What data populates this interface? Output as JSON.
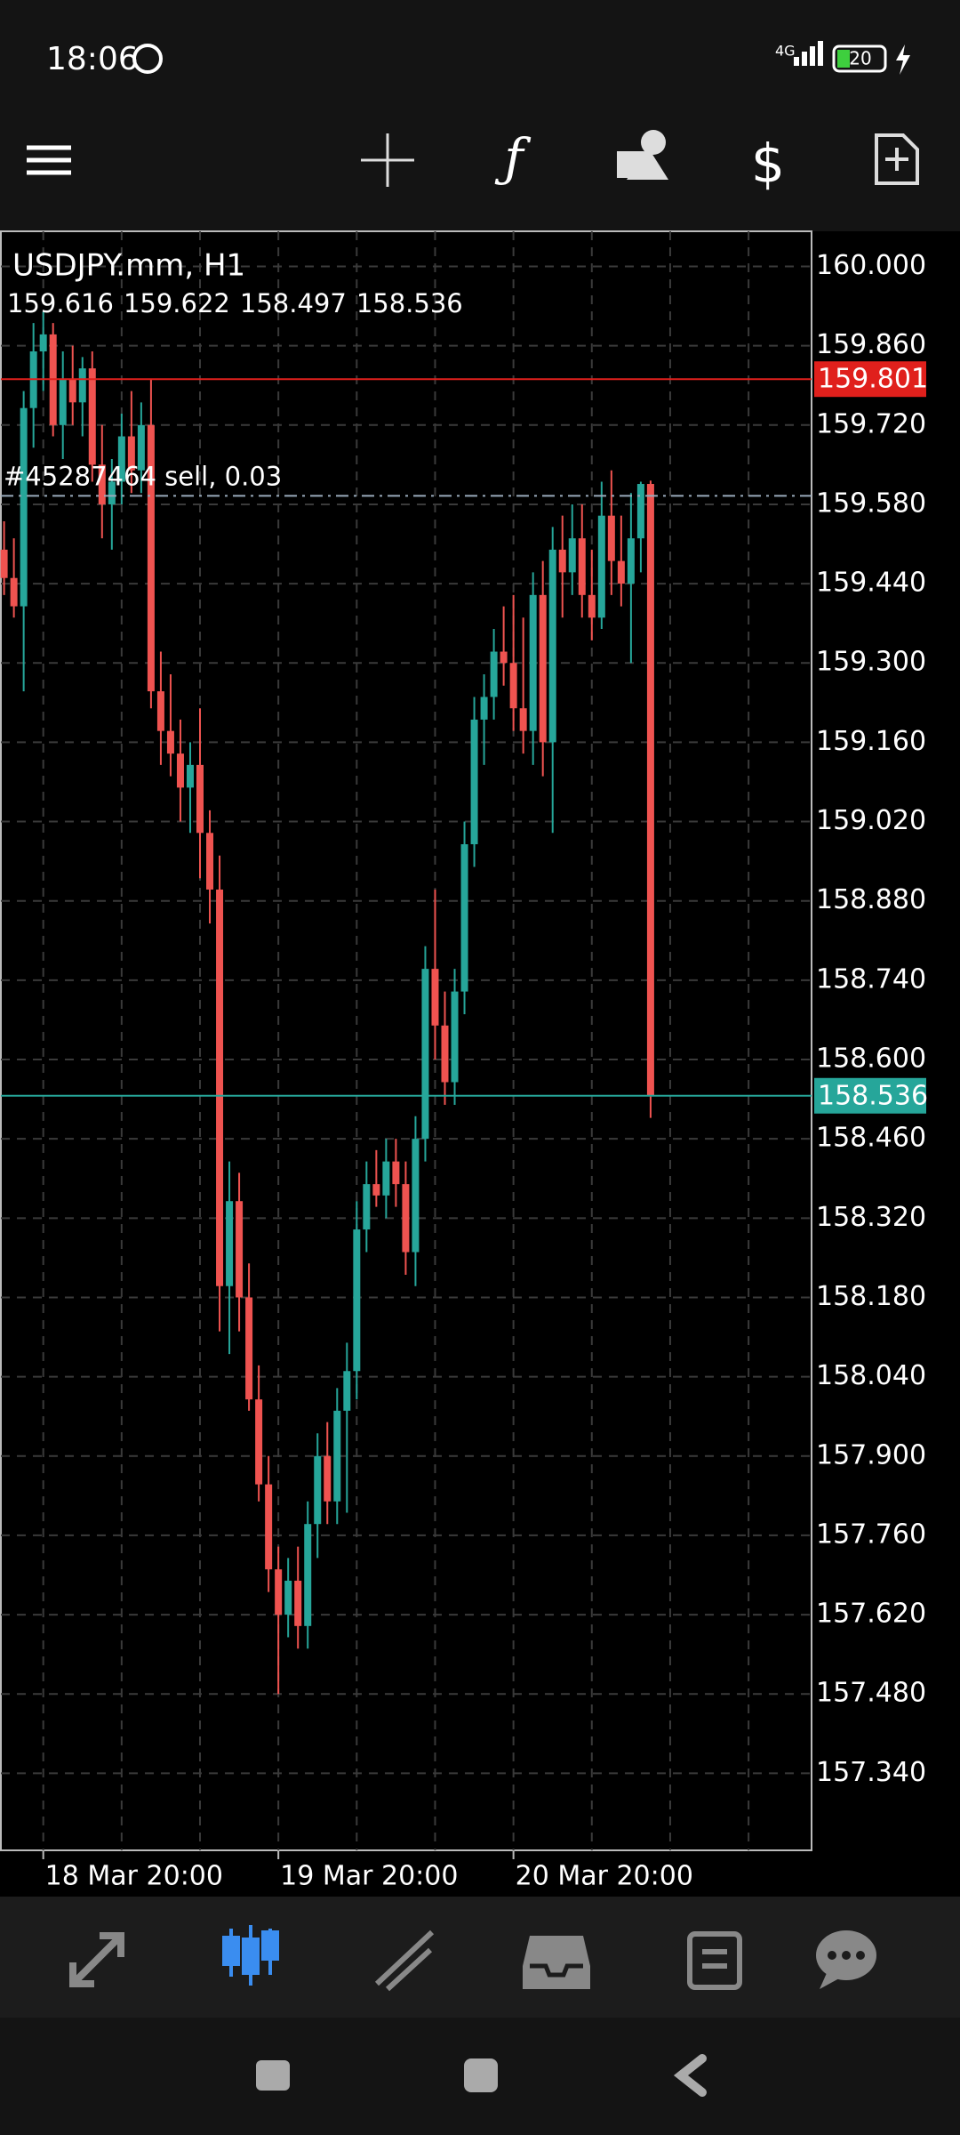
{
  "status": {
    "time": "18:06",
    "network": "4G",
    "battery": "20"
  },
  "chart_data": {
    "type": "candlestick",
    "title": "USDJPY.mm, H1",
    "order_label": "#45287464 sell, 0.03",
    "order_price": 159.595,
    "ask": 159.801,
    "up_color": "#26a69a",
    "down_color": "#ef5350",
    "ask_color": "#e0201c",
    "grid": true,
    "categories": [
      null,
      null,
      null,
      null,
      "18 Mar 20:00",
      null,
      null,
      null,
      null,
      null,
      null,
      null,
      null,
      null,
      null,
      null,
      null,
      null,
      null,
      null,
      null,
      null,
      null,
      null,
      null,
      null,
      null,
      null,
      "19 Mar 20:00",
      null,
      null,
      null,
      null,
      null,
      null,
      null,
      null,
      null,
      null,
      null,
      null,
      null,
      null,
      null,
      null,
      null,
      null,
      null,
      null,
      null,
      null,
      null,
      "20 Mar 20:00",
      null,
      null,
      null,
      null,
      null,
      null,
      null,
      null,
      null,
      null,
      null,
      null,
      null,
      null
    ],
    "open": [
      159.5,
      159.45,
      159.4,
      159.75,
      159.85,
      159.88,
      159.72,
      159.8,
      159.76,
      159.82,
      159.65,
      159.58,
      159.62,
      159.7,
      159.64,
      159.72,
      159.25,
      159.18,
      159.14,
      159.08,
      159.12,
      159.0,
      158.9,
      158.2,
      158.35,
      158.18,
      158.0,
      157.85,
      157.7,
      157.62,
      157.68,
      157.6,
      157.78,
      157.9,
      157.82,
      157.98,
      158.05,
      158.3,
      158.38,
      158.36,
      158.42,
      158.38,
      158.26,
      158.46,
      158.76,
      158.66,
      158.56,
      158.72,
      158.98,
      159.2,
      159.24,
      159.32,
      159.3,
      159.22,
      159.18,
      159.42,
      159.16,
      159.5,
      159.46,
      159.52,
      159.42,
      159.38,
      159.56,
      159.48,
      159.44,
      159.52,
      159.616
    ],
    "high": [
      159.55,
      159.52,
      159.78,
      159.9,
      159.92,
      159.9,
      159.85,
      159.86,
      159.84,
      159.85,
      159.72,
      159.66,
      159.74,
      159.78,
      159.76,
      159.8,
      159.32,
      159.28,
      159.2,
      159.16,
      159.22,
      159.04,
      158.96,
      158.42,
      158.4,
      158.24,
      158.06,
      157.9,
      157.74,
      157.72,
      157.74,
      157.82,
      157.94,
      157.96,
      158.02,
      158.1,
      158.35,
      158.42,
      158.44,
      158.46,
      158.46,
      158.42,
      158.5,
      158.8,
      158.9,
      158.72,
      158.76,
      159.02,
      159.24,
      159.28,
      159.36,
      159.4,
      159.42,
      159.38,
      159.46,
      159.48,
      159.54,
      159.56,
      159.58,
      159.58,
      159.5,
      159.62,
      159.64,
      159.56,
      159.6,
      159.62,
      159.622
    ],
    "low": [
      159.42,
      159.38,
      159.25,
      159.68,
      159.78,
      159.7,
      159.66,
      159.72,
      159.7,
      159.62,
      159.52,
      159.5,
      159.58,
      159.6,
      159.6,
      159.22,
      159.12,
      159.1,
      159.02,
      159.0,
      158.92,
      158.84,
      158.12,
      158.08,
      158.12,
      157.98,
      157.82,
      157.66,
      157.48,
      157.58,
      157.56,
      157.56,
      157.72,
      157.78,
      157.78,
      157.8,
      158.0,
      158.26,
      158.34,
      158.32,
      158.34,
      158.22,
      158.2,
      158.42,
      158.6,
      158.52,
      158.52,
      158.68,
      158.94,
      159.12,
      159.2,
      159.26,
      159.18,
      159.14,
      159.12,
      159.1,
      159.0,
      159.38,
      159.42,
      159.38,
      159.34,
      159.36,
      159.42,
      159.4,
      159.3,
      159.46,
      158.497
    ],
    "close": [
      159.45,
      159.4,
      159.75,
      159.85,
      159.88,
      159.72,
      159.8,
      159.76,
      159.82,
      159.65,
      159.58,
      159.62,
      159.7,
      159.64,
      159.72,
      159.25,
      159.18,
      159.14,
      159.08,
      159.12,
      159.0,
      158.9,
      158.2,
      158.35,
      158.18,
      158.0,
      157.85,
      157.7,
      157.62,
      157.68,
      157.6,
      157.78,
      157.9,
      157.82,
      157.98,
      158.05,
      158.3,
      158.38,
      158.36,
      158.42,
      158.38,
      158.26,
      158.46,
      158.76,
      158.66,
      158.56,
      158.72,
      158.98,
      159.2,
      159.24,
      159.32,
      159.3,
      159.22,
      159.18,
      159.42,
      159.16,
      159.5,
      159.46,
      159.52,
      159.42,
      159.38,
      159.56,
      159.48,
      159.44,
      159.52,
      159.616,
      158.536
    ],
    "ylim": [
      157.204,
      160.062
    ],
    "yticks": [
      {
        "value": 160.0,
        "label": "160.000"
      },
      {
        "value": 159.86,
        "label": "159.860"
      },
      {
        "value": 159.72,
        "label": "159.720"
      },
      {
        "value": 159.58,
        "label": "159.580"
      },
      {
        "value": 159.44,
        "label": "159.440"
      },
      {
        "value": 159.3,
        "label": "159.300"
      },
      {
        "value": 159.16,
        "label": "159.160"
      },
      {
        "value": 159.02,
        "label": "159.020"
      },
      {
        "value": 158.88,
        "label": "158.880"
      },
      {
        "value": 158.74,
        "label": "158.740"
      },
      {
        "value": 158.6,
        "label": "158.600"
      },
      {
        "value": 158.46,
        "label": "158.460"
      },
      {
        "value": 158.32,
        "label": "158.320"
      },
      {
        "value": 158.18,
        "label": "158.180"
      },
      {
        "value": 158.04,
        "label": "158.040"
      },
      {
        "value": 157.9,
        "label": "157.900"
      },
      {
        "value": 157.76,
        "label": "157.760"
      },
      {
        "value": 157.62,
        "label": "157.620"
      },
      {
        "value": 157.48,
        "label": "157.480"
      },
      {
        "value": 157.34,
        "label": "157.340"
      }
    ]
  }
}
